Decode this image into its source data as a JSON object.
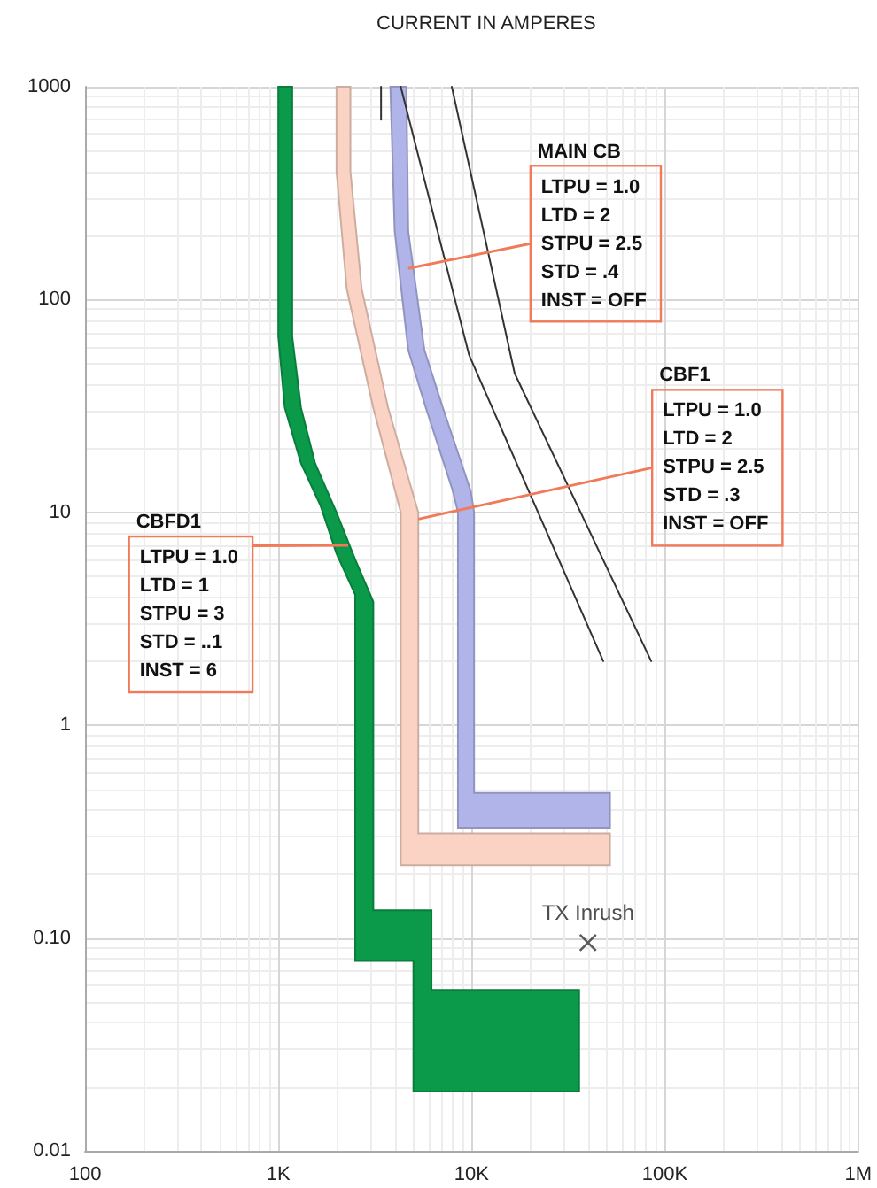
{
  "chart_data": {
    "type": "line",
    "xlabel": "CURRENT IN AMPERES",
    "log": "xy",
    "grid": true,
    "xlim": [
      100,
      1000000
    ],
    "ylim": [
      0.01,
      1000
    ],
    "xticks": [
      {
        "value": 100,
        "label": "100"
      },
      {
        "value": 1000,
        "label": "1K"
      },
      {
        "value": 10000,
        "label": "10K"
      },
      {
        "value": 100000,
        "label": "100K"
      },
      {
        "value": 1000000,
        "label": "1M"
      }
    ],
    "yticks": [
      0.01,
      {
        "value": 0.1,
        "label": "0.10"
      },
      1,
      10,
      100,
      1000
    ],
    "series": [
      {
        "type": "area",
        "color": "#0a9a4a",
        "x": [
          1000,
          1180,
          1180,
          1310,
          1550,
          2000,
          2500,
          3100,
          3100,
          6200,
          6200,
          36000,
          36000,
          5000,
          5000,
          2500,
          2500,
          2000,
          1650,
          1310,
          1080,
          1000
        ],
        "values": [
          1000,
          1000,
          67,
          31,
          17,
          10,
          6,
          3.8,
          0.135,
          0.135,
          0.057,
          0.057,
          0.019,
          0.019,
          0.078,
          0.078,
          4.1,
          6.4,
          10.8,
          17,
          31,
          67
        ]
      },
      {
        "type": "area",
        "color": "#fbd3c4",
        "x": [
          2000,
          2000,
          2260,
          3100,
          4300,
          4300,
          52000,
          52000,
          5300,
          5300,
          3700,
          2700,
          2360,
          2360
        ],
        "values": [
          1000,
          400,
          112,
          31,
          10,
          0.22,
          0.22,
          0.31,
          0.31,
          10,
          31,
          112,
          400,
          1000
        ]
      },
      {
        "type": "area",
        "color": "#b0b4e8",
        "x": [
          3800,
          4000,
          4700,
          5800,
          8000,
          8500,
          8500,
          52000,
          52000,
          10300,
          10300,
          9900,
          7100,
          5700,
          4700,
          4600
        ],
        "values": [
          1000,
          210,
          58,
          31,
          12.6,
          10,
          0.33,
          0.33,
          0.48,
          0.48,
          10,
          12.6,
          31,
          58,
          210,
          1000
        ]
      },
      {
        "color": "#333333",
        "x": [
          4300,
          9700,
          48000
        ],
        "values": [
          1000,
          55,
          2
        ]
      },
      {
        "color": "#333333",
        "x": [
          7900,
          16700,
          85000
        ],
        "values": [
          1000,
          45,
          2
        ]
      },
      {
        "color": "#333333",
        "x": [
          3400,
          3400
        ],
        "values": [
          1000,
          700
        ]
      },
      {
        "type": "scatter",
        "name": "TX Inrush",
        "color": "#333333",
        "marker": "cross",
        "x": [
          40000
        ],
        "values": [
          0.095
        ]
      }
    ],
    "annotations": [
      {
        "text": "MAIN CB\nLTPU = 1.0\nLTD = 2\nSTPU = 2.5\nSTD = .4\nINST = OFF",
        "x": 4700,
        "y": 140
      },
      {
        "text": "CBF1\nLTPU = 1.0\nLTD = 2\nSTPU = 2.5\nSTD = .3\nINST = OFF",
        "x": 5300,
        "y": 9.3
      },
      {
        "text": "CBFD1\nLTPU = 1.0\nLTD = 1\nSTPU = 3\nSTD = ..1\nINST = 6",
        "x": 2300,
        "y": 7
      }
    ]
  }
}
